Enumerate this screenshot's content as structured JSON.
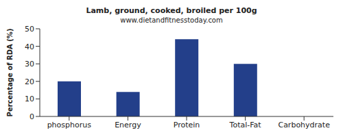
{
  "chart_data": {
    "type": "bar",
    "title": "Lamb, ground, cooked, broiled per 100g",
    "subtitle": "www.dietandfitnesstoday.com",
    "y_label": "Percentage of RDA (%)",
    "categories": [
      "phosphorus",
      "Energy",
      "Protein",
      "Total-Fat",
      "Carbohydrate"
    ],
    "values": [
      20,
      14,
      44,
      30,
      0
    ],
    "color": "#233f8a",
    "ylim": [
      0,
      50
    ],
    "yticks": [
      0,
      10,
      20,
      30,
      40,
      50
    ],
    "grid": false
  }
}
